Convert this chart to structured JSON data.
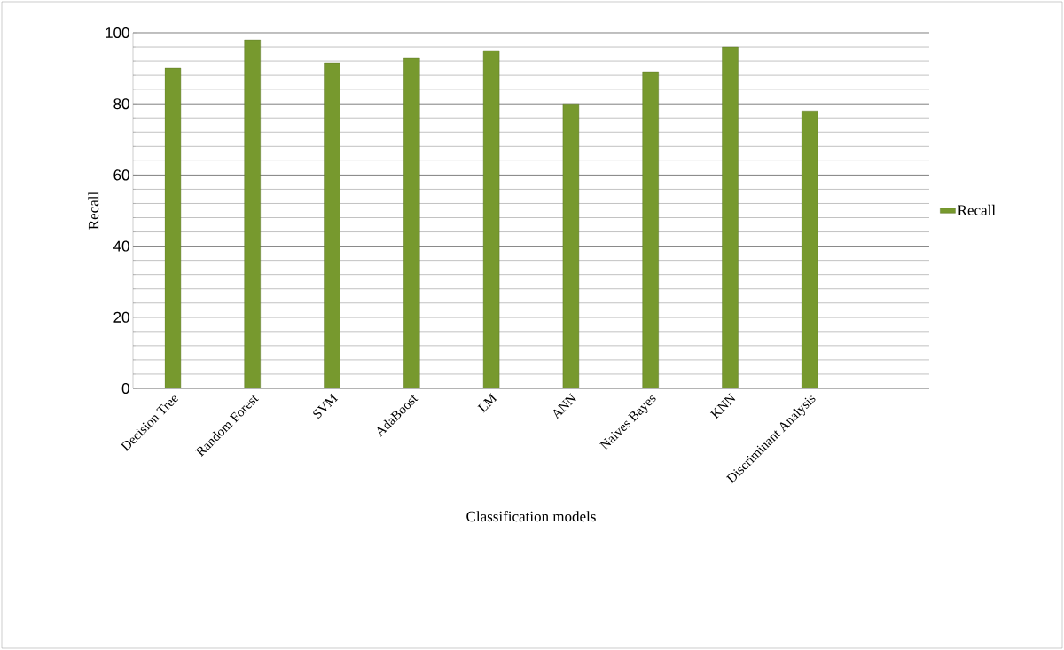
{
  "chart_data": {
    "type": "bar",
    "xlabel": "Classification models",
    "ylabel": "Recall",
    "categories": [
      "Decision Tree",
      "Random Forest",
      "SVM",
      "AdaBoost",
      "LM",
      "ANN",
      "Naives Bayes",
      "KNN",
      "Discriminant Analysis"
    ],
    "series": [
      {
        "name": "Recall",
        "color": "#77992e",
        "values": [
          90,
          98,
          91.5,
          93,
          95,
          80,
          89,
          96,
          78
        ]
      }
    ],
    "ylim": [
      0,
      100
    ],
    "yticks": [
      0,
      20,
      40,
      60,
      80,
      100
    ],
    "grid": "y",
    "legend": "right"
  }
}
